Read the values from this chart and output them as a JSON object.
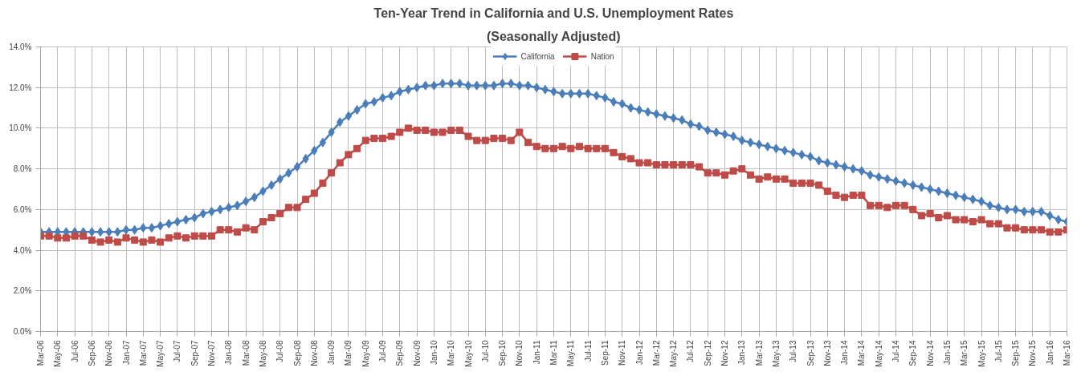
{
  "chart_data": {
    "type": "line",
    "title": "Ten-Year Trend in California and U.S. Unemployment Rates",
    "subtitle": "(Seasonally Adjusted)",
    "categories": [
      "Mar-06",
      null,
      "May-06",
      null,
      "Jul-06",
      null,
      "Sep-06",
      null,
      "Nov-06",
      null,
      "Jan-07",
      null,
      "Mar-07",
      null,
      "May-07",
      null,
      "Jul-07",
      null,
      "Sep-07",
      null,
      "Nov-07",
      null,
      "Jan-08",
      null,
      "Mar-08",
      null,
      "May-08",
      null,
      "Jul-08",
      null,
      "Sep-08",
      null,
      "Nov-08",
      null,
      "Jan-09",
      null,
      "Mar-09",
      null,
      "May-09",
      null,
      "Jul-09",
      null,
      "Sep-09",
      null,
      "Nov-09",
      null,
      "Jan-10",
      null,
      "Mar-10",
      null,
      "May-10",
      null,
      "Jul-10",
      null,
      "Sep-10",
      null,
      "Nov-10",
      null,
      "Jan-11",
      null,
      "Mar-11",
      null,
      "May-11",
      null,
      "Jul-11",
      null,
      "Sep-11",
      null,
      "Nov-11",
      null,
      "Jan-12",
      null,
      "Mar-12",
      null,
      "May-12",
      null,
      "Jul-12",
      null,
      "Sep-12",
      null,
      "Nov-12",
      null,
      "Jan-13",
      null,
      "Mar-13",
      null,
      "May-13",
      null,
      "Jul-13",
      null,
      "Sep-13",
      null,
      "Nov-13",
      null,
      "Jan-14",
      null,
      "Mar-14",
      null,
      "May-14",
      null,
      "Jul-14",
      null,
      "Sep-14",
      null,
      "Nov-14",
      null,
      "Jan-15",
      null,
      "Mar-15",
      null,
      "May-15",
      null,
      "Jul-15",
      null,
      "Sep-15",
      null,
      "Nov-15",
      null,
      "Jan-16",
      null,
      "Mar-16"
    ],
    "series": [
      {
        "name": "California",
        "color": "#4a7ebb",
        "marker": "diamond",
        "values": [
          4.9,
          4.9,
          4.9,
          4.9,
          4.9,
          4.9,
          4.9,
          4.9,
          4.9,
          4.9,
          5.0,
          5.0,
          5.1,
          5.1,
          5.2,
          5.3,
          5.4,
          5.5,
          5.6,
          5.8,
          5.9,
          6.0,
          6.1,
          6.2,
          6.4,
          6.6,
          6.9,
          7.2,
          7.5,
          7.8,
          8.1,
          8.5,
          8.9,
          9.3,
          9.8,
          10.3,
          10.6,
          10.9,
          11.2,
          11.3,
          11.5,
          11.6,
          11.8,
          11.9,
          12.0,
          12.1,
          12.1,
          12.2,
          12.2,
          12.2,
          12.1,
          12.1,
          12.1,
          12.1,
          12.2,
          12.2,
          12.1,
          12.1,
          12.0,
          11.9,
          11.8,
          11.7,
          11.7,
          11.7,
          11.7,
          11.6,
          11.5,
          11.3,
          11.2,
          11.0,
          10.9,
          10.8,
          10.7,
          10.6,
          10.5,
          10.4,
          10.2,
          10.1,
          9.9,
          9.8,
          9.7,
          9.6,
          9.4,
          9.3,
          9.2,
          9.1,
          9.0,
          8.9,
          8.8,
          8.7,
          8.6,
          8.4,
          8.3,
          8.2,
          8.1,
          8.0,
          7.9,
          7.7,
          7.6,
          7.5,
          7.4,
          7.3,
          7.2,
          7.1,
          7.0,
          6.9,
          6.8,
          6.7,
          6.6,
          6.5,
          6.4,
          6.2,
          6.1,
          6.0,
          6.0,
          5.9,
          5.9,
          5.9,
          5.7,
          5.5,
          5.4
        ]
      },
      {
        "name": "Nation",
        "color": "#be4b48",
        "marker": "square",
        "values": [
          4.7,
          4.7,
          4.6,
          4.6,
          4.7,
          4.7,
          4.5,
          4.4,
          4.5,
          4.4,
          4.6,
          4.5,
          4.4,
          4.5,
          4.4,
          4.6,
          4.7,
          4.6,
          4.7,
          4.7,
          4.7,
          5.0,
          5.0,
          4.9,
          5.1,
          5.0,
          5.4,
          5.6,
          5.8,
          6.1,
          6.1,
          6.5,
          6.8,
          7.3,
          7.8,
          8.3,
          8.7,
          9.0,
          9.4,
          9.5,
          9.5,
          9.6,
          9.8,
          10.0,
          9.9,
          9.9,
          9.8,
          9.8,
          9.9,
          9.9,
          9.6,
          9.4,
          9.4,
          9.5,
          9.5,
          9.4,
          9.8,
          9.3,
          9.1,
          9.0,
          9.0,
          9.1,
          9.0,
          9.1,
          9.0,
          9.0,
          9.0,
          8.8,
          8.6,
          8.5,
          8.3,
          8.3,
          8.2,
          8.2,
          8.2,
          8.2,
          8.2,
          8.1,
          7.8,
          7.8,
          7.7,
          7.9,
          8.0,
          7.7,
          7.5,
          7.6,
          7.5,
          7.5,
          7.3,
          7.3,
          7.3,
          7.2,
          6.9,
          6.7,
          6.6,
          6.7,
          6.7,
          6.2,
          6.2,
          6.1,
          6.2,
          6.2,
          6.0,
          5.7,
          5.8,
          5.6,
          5.7,
          5.5,
          5.5,
          5.4,
          5.5,
          5.3,
          5.3,
          5.1,
          5.1,
          5.0,
          5.0,
          5.0,
          4.9,
          4.9,
          5.0
        ]
      }
    ],
    "ylim": [
      0,
      14
    ],
    "yticks": [
      {
        "value": 0,
        "label": "0.0%"
      },
      {
        "value": 2,
        "label": "2.0%"
      },
      {
        "value": 4,
        "label": "4.0%"
      },
      {
        "value": 6,
        "label": "6.0%"
      },
      {
        "value": 8,
        "label": "8.0%"
      },
      {
        "value": 10,
        "label": "10.0%"
      },
      {
        "value": 12,
        "label": "12.0%"
      },
      {
        "value": 14,
        "label": "14.0%"
      }
    ],
    "grid": true,
    "legend": "top"
  }
}
